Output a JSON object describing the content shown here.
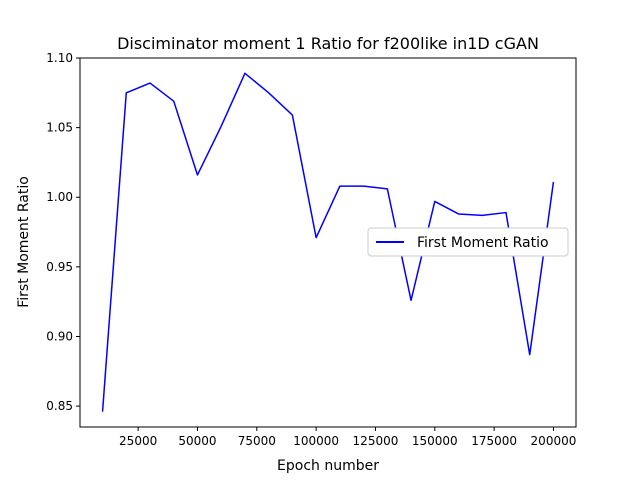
{
  "chart_data": {
    "type": "line",
    "title": "Disciminator moment 1 Ratio for f200like in1D cGAN",
    "xlabel": "Epoch number",
    "ylabel": "First Moment Ratio",
    "xlim": [
      500,
      209500
    ],
    "ylim": [
      0.835,
      1.1
    ],
    "xticks": [
      25000,
      50000,
      75000,
      100000,
      125000,
      150000,
      175000,
      200000
    ],
    "yticks": [
      0.85,
      0.9,
      0.95,
      1.0,
      1.05,
      1.1
    ],
    "ytick_format": 2,
    "grid": false,
    "legend_position": "center-right",
    "series": [
      {
        "name": "First Moment Ratio",
        "color": "#0000ff",
        "x": [
          10000,
          20000,
          30000,
          40000,
          50000,
          60000,
          70000,
          80000,
          90000,
          100000,
          110000,
          120000,
          130000,
          140000,
          150000,
          160000,
          170000,
          180000,
          190000,
          200000
        ],
        "y": [
          0.846,
          1.075,
          1.082,
          1.069,
          1.016,
          1.051,
          1.089,
          1.075,
          1.059,
          0.971,
          1.008,
          1.008,
          1.006,
          0.926,
          0.997,
          0.988,
          0.987,
          0.989,
          0.887,
          1.011
        ]
      }
    ]
  }
}
